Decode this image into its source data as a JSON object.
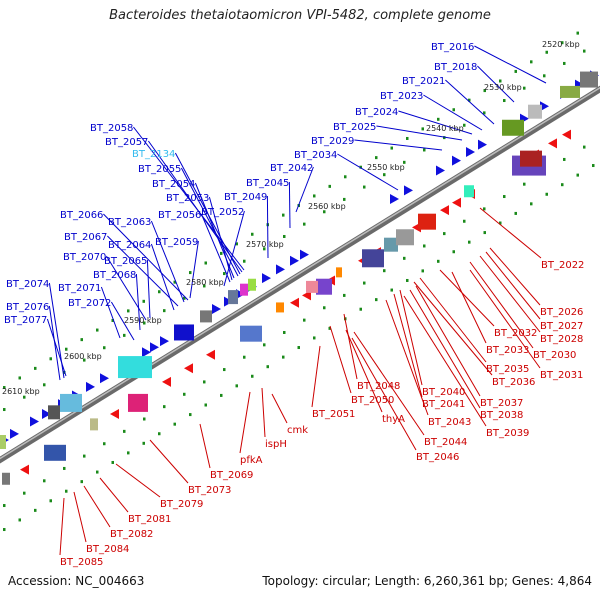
{
  "title": "Bacteroides thetaiotaomicron VPI-5482, complete genome",
  "footer": {
    "accession": "Accession: NC_004663",
    "summary": "Topology: circular; Length: 6,260,361 bp; Genes: 4,864"
  },
  "colors": {
    "forward_label": "#0000cc",
    "reverse_label": "#cc0000",
    "highlight_label": "#33bbee",
    "backbone": "#888888",
    "tick": "#1a8a1a"
  },
  "scale_labels": [
    "2520 kbp",
    "2530 kbp",
    "2540 kbp",
    "2550 kbp",
    "2560 kbp",
    "2570 kbp",
    "2580 kbp",
    "2590 kbp",
    "2600 kbp",
    "2610 kbp"
  ],
  "forward_genes": [
    {
      "label": "BT_2016"
    },
    {
      "label": "BT_2018"
    },
    {
      "label": "BT_2021"
    },
    {
      "label": "BT_2023"
    },
    {
      "label": "BT_2024"
    },
    {
      "label": "BT_2025"
    },
    {
      "label": "BT_2029"
    },
    {
      "label": "BT_2034"
    },
    {
      "label": "BT_2058"
    },
    {
      "label": "BT_2057"
    },
    {
      "label": "BT_2134"
    },
    {
      "label": "BT_2055"
    },
    {
      "label": "BT_2054"
    },
    {
      "label": "BT_2053"
    },
    {
      "label": "BT_2056"
    },
    {
      "label": "BT_2052"
    },
    {
      "label": "BT_2049"
    },
    {
      "label": "BT_2045"
    },
    {
      "label": "BT_2042"
    },
    {
      "label": "BT_2066"
    },
    {
      "label": "BT_2063"
    },
    {
      "label": "BT_2067"
    },
    {
      "label": "BT_2064"
    },
    {
      "label": "BT_2059"
    },
    {
      "label": "BT_2070"
    },
    {
      "label": "BT_2065"
    },
    {
      "label": "BT_2068"
    },
    {
      "label": "BT_2074"
    },
    {
      "label": "BT_2071"
    },
    {
      "label": "BT_2072"
    },
    {
      "label": "BT_2076"
    },
    {
      "label": "BT_2077"
    }
  ],
  "reverse_genes": [
    {
      "label": "BT_2022"
    },
    {
      "label": "BT_2026"
    },
    {
      "label": "BT_2027"
    },
    {
      "label": "BT_2028"
    },
    {
      "label": "BT_2032"
    },
    {
      "label": "BT_2030"
    },
    {
      "label": "BT_2033"
    },
    {
      "label": "BT_2031"
    },
    {
      "label": "BT_2035"
    },
    {
      "label": "BT_2036"
    },
    {
      "label": "BT_2048"
    },
    {
      "label": "BT_2040"
    },
    {
      "label": "BT_2050"
    },
    {
      "label": "BT_2041"
    },
    {
      "label": "BT_2037"
    },
    {
      "label": "BT_2038"
    },
    {
      "label": "BT_2051"
    },
    {
      "label": "thyA"
    },
    {
      "label": "BT_2043"
    },
    {
      "label": "cmk"
    },
    {
      "label": "BT_2039"
    },
    {
      "label": "BT_2044"
    },
    {
      "label": "ispH"
    },
    {
      "label": "pfkA"
    },
    {
      "label": "BT_2046"
    },
    {
      "label": "BT_2069"
    },
    {
      "label": "BT_2073"
    },
    {
      "label": "BT_2079"
    },
    {
      "label": "BT_2081"
    },
    {
      "label": "BT_2082"
    },
    {
      "label": "BT_2084"
    },
    {
      "label": "BT_2085"
    }
  ]
}
